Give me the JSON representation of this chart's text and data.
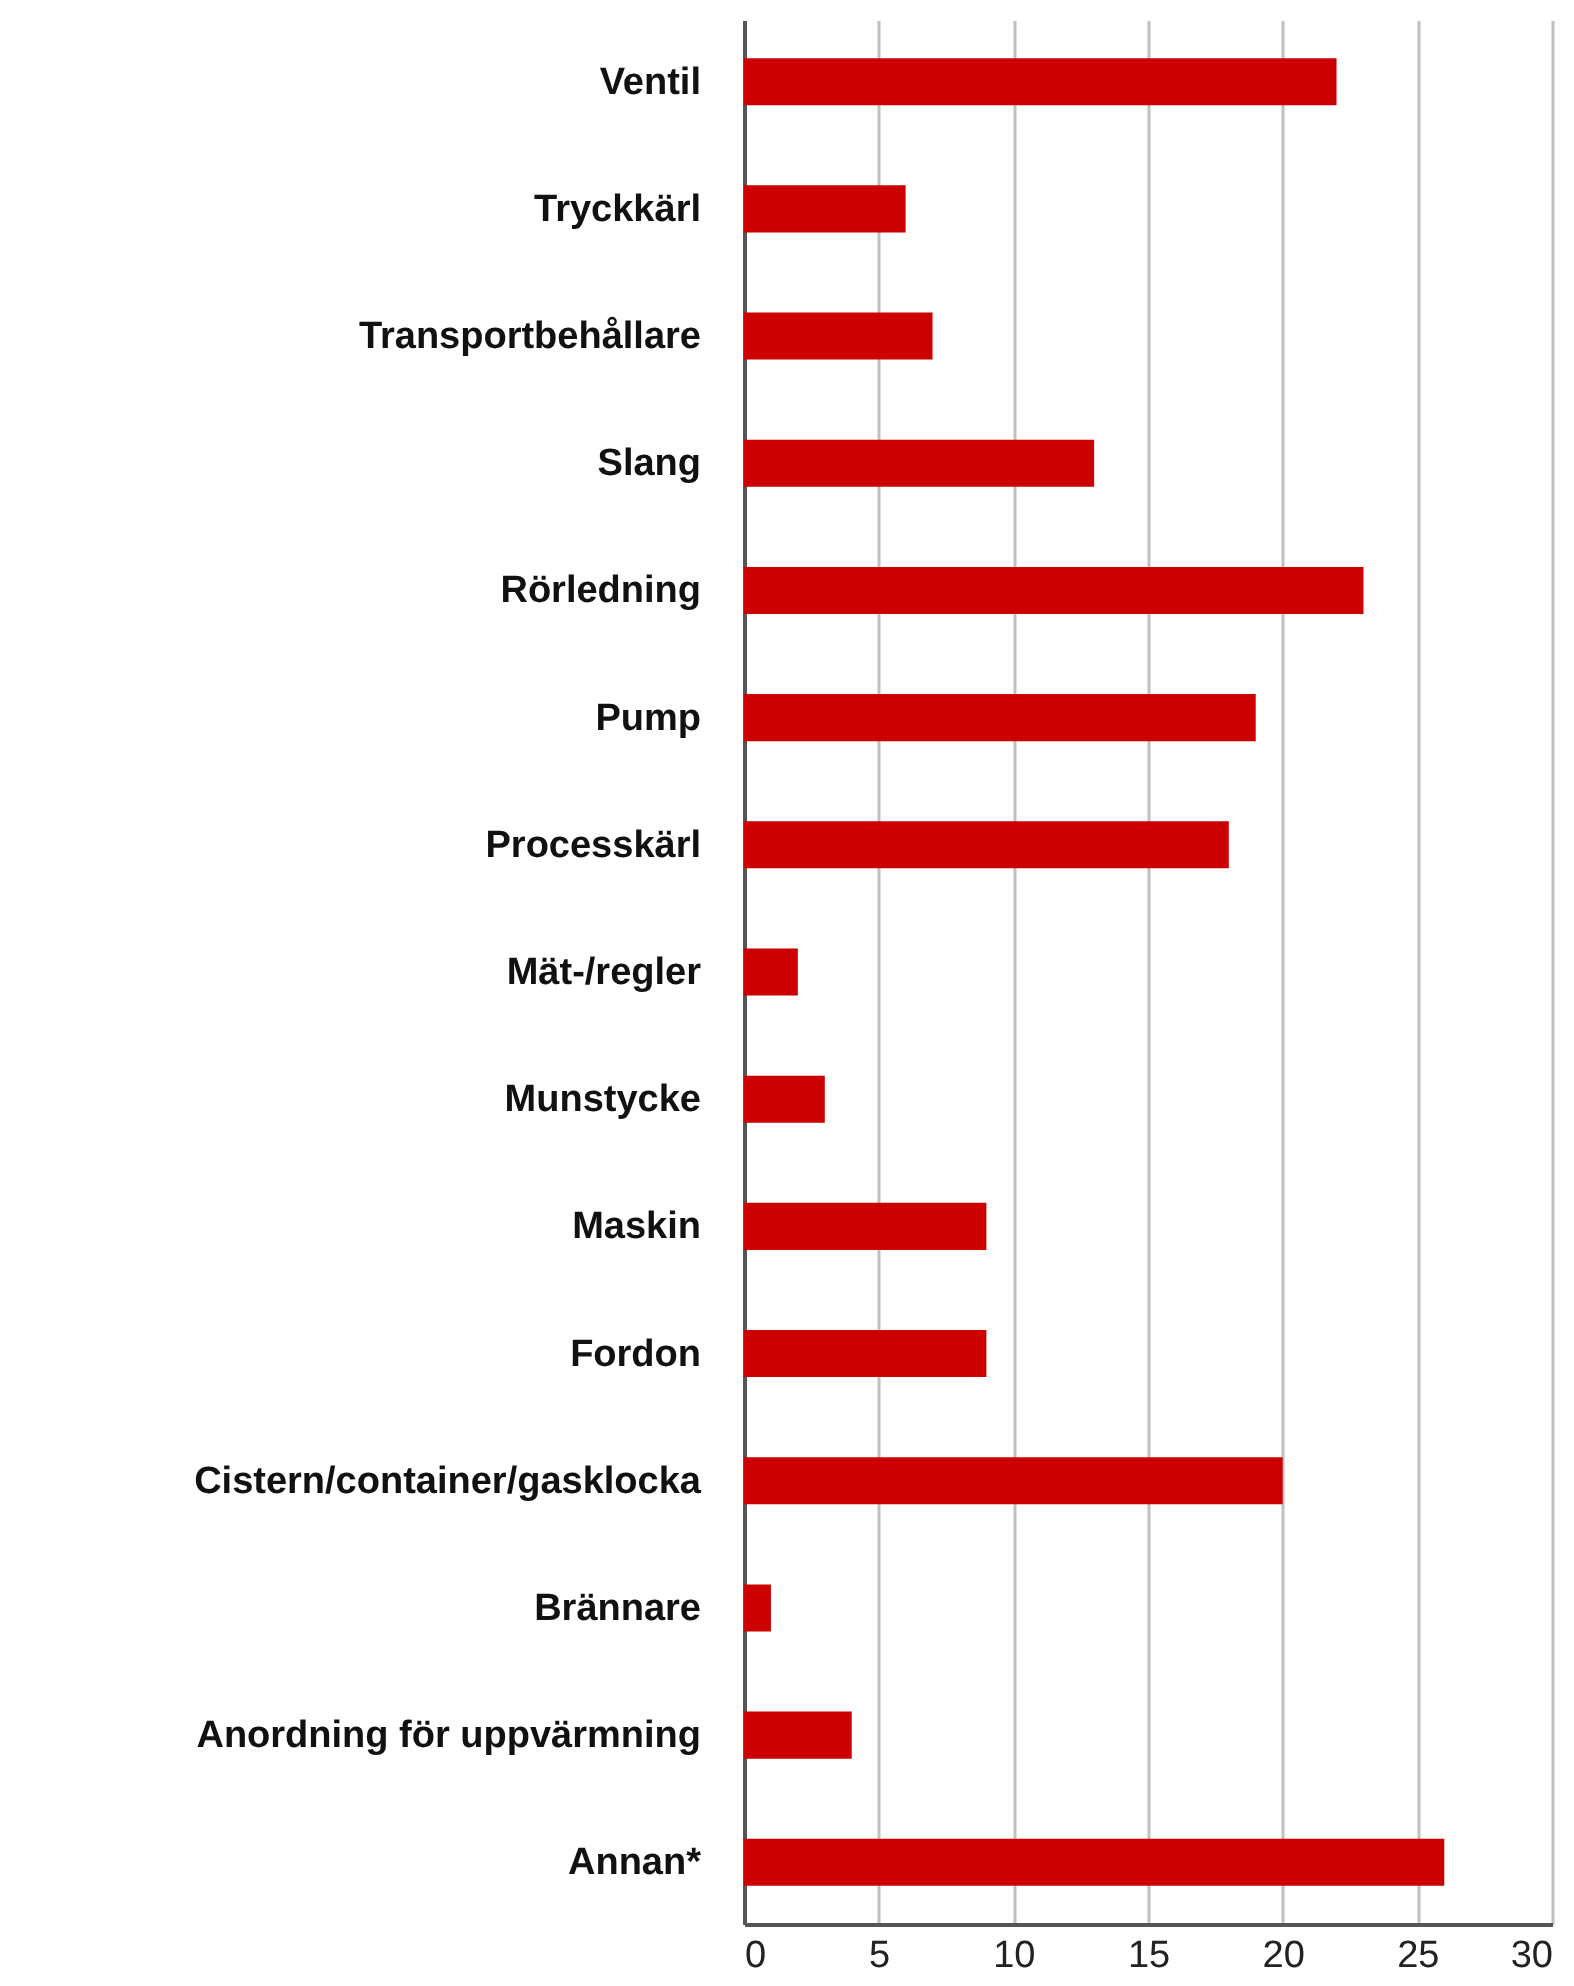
{
  "chart_data": {
    "type": "bar",
    "orientation": "horizontal",
    "categories": [
      "Ventil",
      "Tryckkärl",
      "Transportbehållare",
      "Slang",
      "Rörledning",
      "Pump",
      "Processkärl",
      "Mät-/regler",
      "Munstycke",
      "Maskin",
      "Fordon",
      "Cistern/container/gasklocka",
      "Brännare",
      "Anordning för uppvärmning",
      "Annan*"
    ],
    "values": [
      22,
      6,
      7,
      13,
      23,
      19,
      18,
      2,
      3,
      9,
      9,
      20,
      1,
      4,
      26
    ],
    "color": "#cc0000",
    "xlim": [
      0,
      30
    ],
    "xticks": [
      0,
      5,
      10,
      15,
      20,
      25,
      30
    ],
    "grid": "x"
  }
}
